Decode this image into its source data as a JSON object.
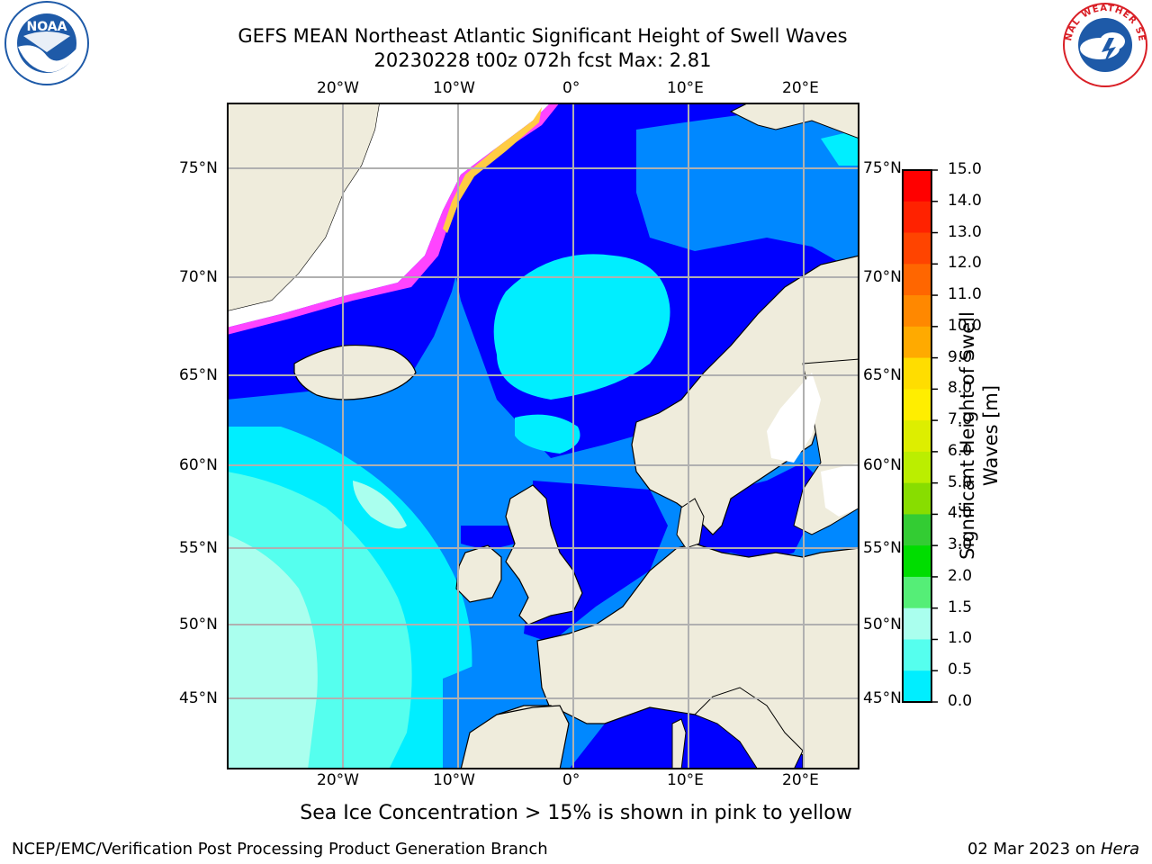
{
  "title": {
    "line1": "GEFS MEAN Northeast Atlantic Significant Height of Swell Waves",
    "line2": "20230228 t00z 072h fcst   Max: 2.81"
  },
  "logos": {
    "left": {
      "text": "NOAA",
      "ring_text": "NATIONAL OCEANIC AND ATMOSPHERIC ADMINISTRATION · U.S. DEPARTMENT OF COMMERCE",
      "color": "#1e5aa8"
    },
    "right": {
      "ring_text": "NATIONAL WEATHER SERVICE",
      "color": "#d91f26"
    }
  },
  "axes": {
    "lon_labels": [
      "20°W",
      "10°W",
      "0°",
      "10°E",
      "20°E"
    ],
    "lat_labels": [
      "75°N",
      "70°N",
      "65°N",
      "60°N",
      "55°N",
      "50°N",
      "45°N"
    ]
  },
  "colorbar": {
    "title_line1": "Significant Height of Swell",
    "title_line2": "Waves [m]",
    "ticks": [
      "15.0",
      "14.0",
      "13.0",
      "12.0",
      "11.0",
      "10.0",
      "9.0",
      "8.0",
      "7.0",
      "6.0",
      "5.0",
      "4.0",
      "3.0",
      "2.0",
      "1.5",
      "1.0",
      "0.5",
      "0.0"
    ],
    "colors": [
      "#ff0000",
      "#ff2200",
      "#ff4400",
      "#ff6600",
      "#ff8800",
      "#ffaa00",
      "#ffdd00",
      "#ffee00",
      "#ddee00",
      "#bbee00",
      "#88dd00",
      "#33cc33",
      "#00dd00",
      "#55ee77",
      "#aaffee",
      "#55ffee",
      "#00eeff",
      "#0088ff",
      "#0000ff"
    ]
  },
  "map_colors": {
    "land": "#efecdc",
    "ice_white": "#ffffff",
    "swell_0": "#0000ff",
    "swell_05": "#0088ff",
    "swell_1": "#00eeff",
    "swell_15": "#55ffee",
    "swell_2": "#aaffee",
    "ice_pink": "#ff44ff",
    "ice_yellow": "#ffcc44",
    "grid": "#b0b0b0"
  },
  "note": "Sea Ice Concentration > 15% is shown in pink to yellow",
  "footer": {
    "left": "NCEP/EMC/Verification Post Processing Product Generation Branch",
    "right_date": "02 Mar 2023 on ",
    "right_host": "Hera"
  }
}
